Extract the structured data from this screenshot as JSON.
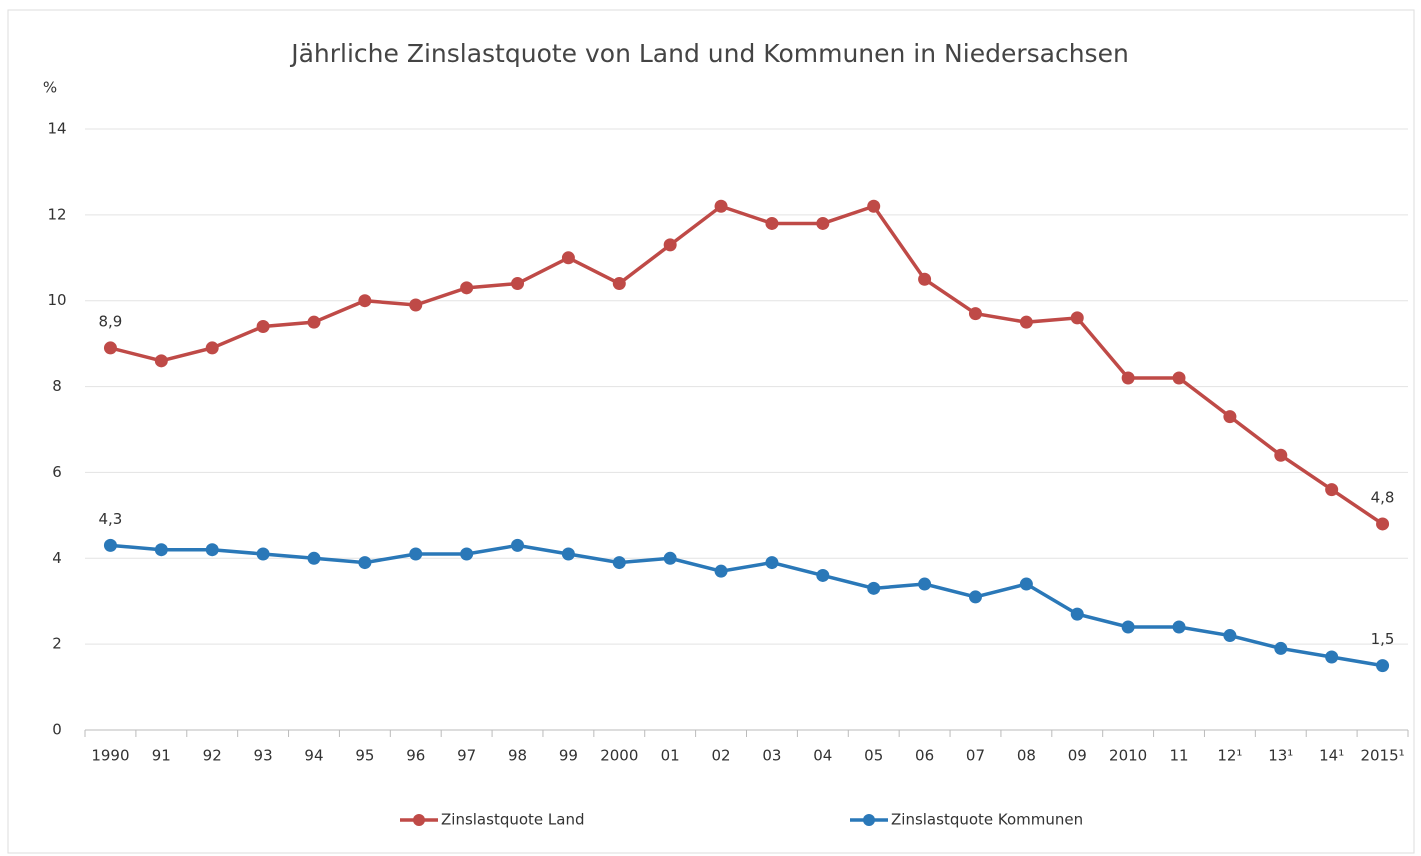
{
  "chart_data": {
    "type": "line",
    "title": "Jährliche Zinslastquote von Land und Kommunen in Niedersachsen",
    "y_label": "%",
    "categories": [
      "1990",
      "91",
      "92",
      "93",
      "94",
      "95",
      "96",
      "97",
      "98",
      "99",
      "2000",
      "01",
      "02",
      "03",
      "04",
      "05",
      "06",
      "07",
      "08",
      "09",
      "2010",
      "11",
      "12¹",
      "13¹",
      "14¹",
      "2015¹"
    ],
    "series": [
      {
        "name": "Zinslastquote Land",
        "color": "#bf4a47",
        "values": [
          8.9,
          8.6,
          8.9,
          9.4,
          9.5,
          10.0,
          9.9,
          10.3,
          10.4,
          11.0,
          10.4,
          11.3,
          12.2,
          11.8,
          11.8,
          12.2,
          10.5,
          9.7,
          9.5,
          9.6,
          8.2,
          8.2,
          7.3,
          6.4,
          5.6,
          4.8
        ],
        "value_labels": [
          "8,9",
          null,
          null,
          null,
          null,
          null,
          null,
          null,
          null,
          null,
          null,
          null,
          null,
          null,
          null,
          null,
          null,
          null,
          null,
          null,
          null,
          null,
          null,
          null,
          null,
          "4,8"
        ]
      },
      {
        "name": "Zinslastquote Kommunen",
        "color": "#2a78b8",
        "values": [
          4.3,
          4.2,
          4.2,
          4.1,
          4.0,
          3.9,
          4.1,
          4.1,
          4.3,
          4.1,
          3.9,
          4.0,
          3.7,
          3.9,
          3.6,
          3.3,
          3.4,
          3.1,
          3.4,
          2.7,
          2.4,
          2.4,
          2.2,
          1.9,
          1.7,
          1.5
        ],
        "value_labels": [
          "4,3",
          null,
          null,
          null,
          null,
          null,
          null,
          null,
          null,
          null,
          null,
          null,
          null,
          null,
          null,
          null,
          null,
          null,
          null,
          null,
          null,
          null,
          null,
          null,
          null,
          "1,5"
        ]
      }
    ],
    "ylim": [
      0,
      14
    ],
    "yticks": [
      0,
      2,
      4,
      6,
      8,
      10,
      12,
      14
    ],
    "grid": true,
    "legend": "bottom"
  }
}
